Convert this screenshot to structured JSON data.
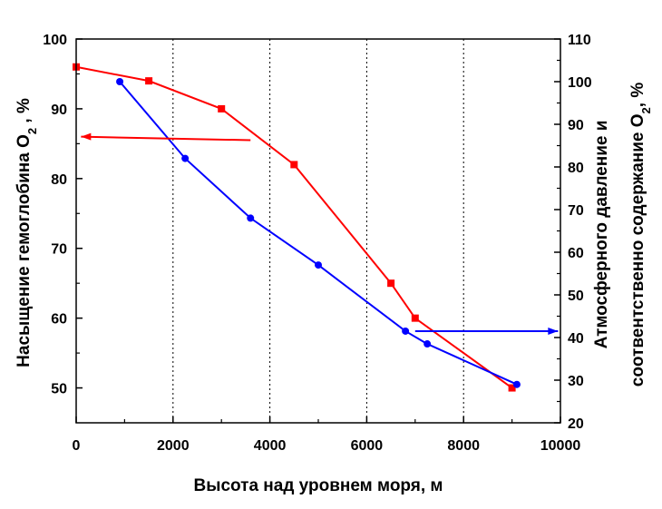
{
  "chart_data": {
    "type": "line",
    "xlabel": "Высота над уровнем моря, м",
    "ylabel_left_main": "Насыщение гемоглобина O",
    "ylabel_left_sub": "2",
    "ylabel_left_tail": " , %",
    "ylabel_right_line1": "Атмосферного давление и",
    "ylabel_right_line2_main": "соотвентственно содержание O",
    "ylabel_right_line2_sub": "2",
    "ylabel_right_line2_tail": ", %",
    "xlim": [
      0,
      10000
    ],
    "ylim_left": [
      45,
      100
    ],
    "ylim_right": [
      20,
      110
    ],
    "x_ticks": [
      0,
      2000,
      4000,
      6000,
      8000,
      10000
    ],
    "y_left_ticks": [
      50,
      60,
      70,
      80,
      90,
      100
    ],
    "y_right_ticks": [
      20,
      30,
      40,
      50,
      60,
      70,
      80,
      90,
      100,
      110
    ],
    "vertical_gridlines": [
      2000,
      4000,
      6000,
      8000
    ],
    "series": [
      {
        "axis": "left",
        "marker": "square",
        "color": "#ff0000",
        "x": [
          0,
          1500,
          3000,
          4500,
          6500,
          7000,
          9000
        ],
        "y": [
          96,
          94,
          90,
          82,
          65,
          60,
          50
        ]
      },
      {
        "axis": "right",
        "marker": "circle",
        "color": "#0000ff",
        "x": [
          900,
          2250,
          3600,
          5000,
          6800,
          7250,
          9100
        ],
        "y": [
          100,
          82,
          68,
          57,
          41.5,
          38.5,
          29
        ]
      }
    ],
    "annotations": [
      {
        "type": "arrow",
        "color": "#ff0000",
        "direction": "left",
        "from": [
          3600,
          85.5
        ],
        "to": [
          100,
          86
        ]
      },
      {
        "type": "arrow",
        "color": "#0000ff",
        "direction": "right",
        "from": [
          7000,
          41.5
        ],
        "to": [
          9950,
          41.5
        ]
      }
    ]
  }
}
